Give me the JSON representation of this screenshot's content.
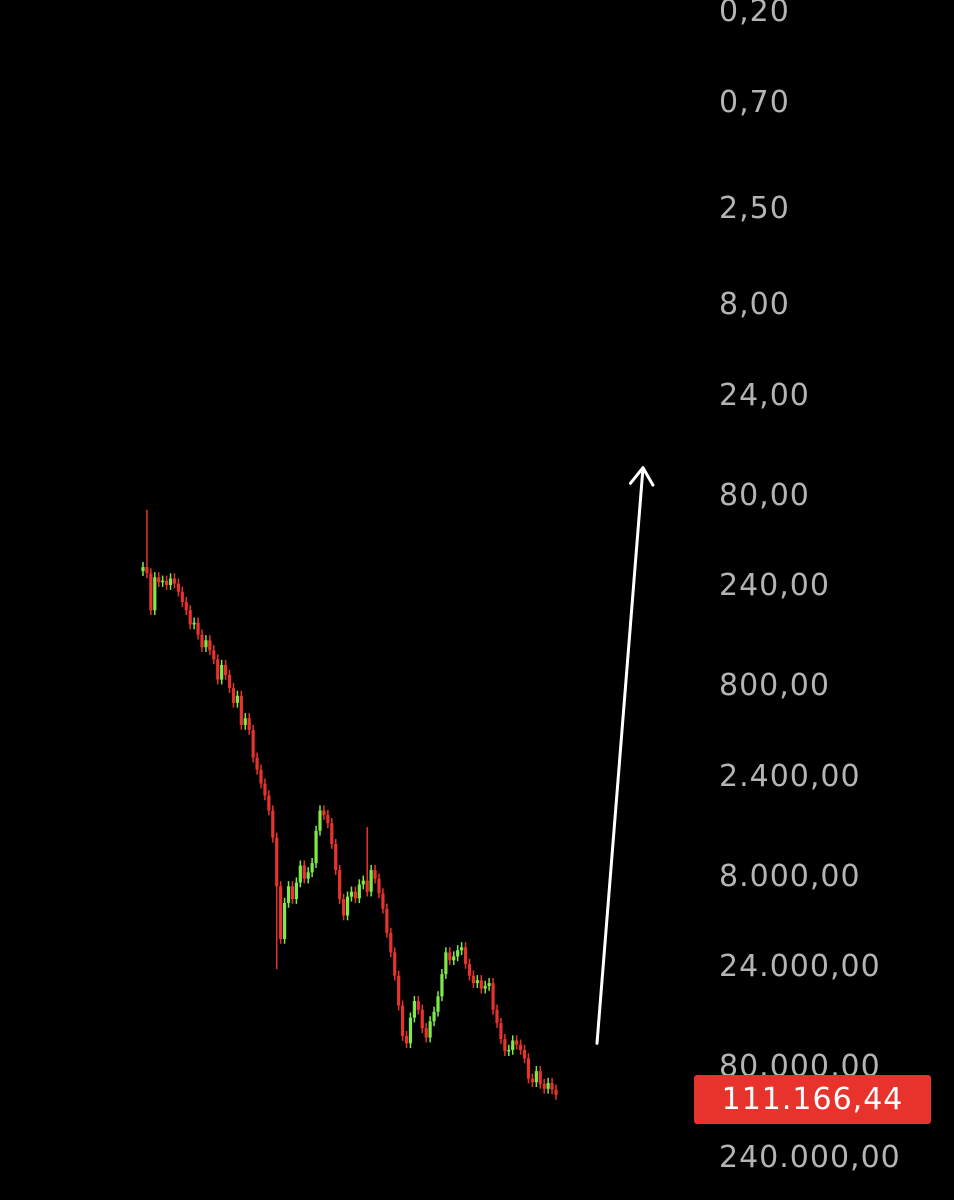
{
  "chart_data": {
    "type": "candlestick",
    "title": "",
    "xlabel": "",
    "ylabel": "",
    "y_axis": {
      "scale": "log",
      "inverted": true,
      "position": "right",
      "tick_labels": [
        "0,20",
        "0,70",
        "2,50",
        "8,00",
        "24,00",
        "80,00",
        "240,00",
        "800,00",
        "2.400,00",
        "8.000,00",
        "24.000,00",
        "80.000,00",
        "240.000,00"
      ],
      "tick_values": [
        0.2,
        0.7,
        2.5,
        8,
        24,
        80,
        240,
        800,
        2400,
        8000,
        24000,
        80000,
        240000
      ]
    },
    "grid": false,
    "current_price": {
      "label": "111.166,44",
      "value": 111166.44
    },
    "candles_close": [
      190,
      205,
      320,
      215,
      228,
      224,
      236,
      218,
      232,
      256,
      290,
      320,
      380,
      372,
      430,
      500,
      460,
      520,
      580,
      740,
      620,
      700,
      820,
      980,
      900,
      1280,
      1180,
      1360,
      1900,
      2200,
      2600,
      3000,
      3600,
      5000,
      9000,
      17000,
      11000,
      9000,
      10500,
      8600,
      7000,
      8200,
      7600,
      6800,
      4600,
      3600,
      3800,
      4200,
      5400,
      7400,
      10500,
      12800,
      10200,
      9600,
      10400,
      8800,
      8400,
      9600,
      7400,
      8200,
      9800,
      11800,
      15800,
      20000,
      26500,
      38000,
      55000,
      60000,
      44000,
      36000,
      40000,
      50000,
      56000,
      46000,
      41000,
      34000,
      26000,
      20000,
      22000,
      21000,
      19500,
      18800,
      23000,
      26500,
      29000,
      28000,
      31000,
      30000,
      29000,
      40000,
      47000,
      57000,
      66000,
      65000,
      58000,
      61000,
      65000,
      72000,
      92000,
      96000,
      84000,
      98000,
      104000,
      97000,
      105000,
      112000
    ],
    "arrow_annotation": {
      "from_value": 60000,
      "to_value": 60,
      "direction": "up"
    },
    "colors": {
      "background": "#000000",
      "up": "#7fe84a",
      "down": "#e8332c",
      "axis_text": "#b4b4b4",
      "arrow": "#ffffff",
      "price_badge": "#e8332c"
    }
  }
}
